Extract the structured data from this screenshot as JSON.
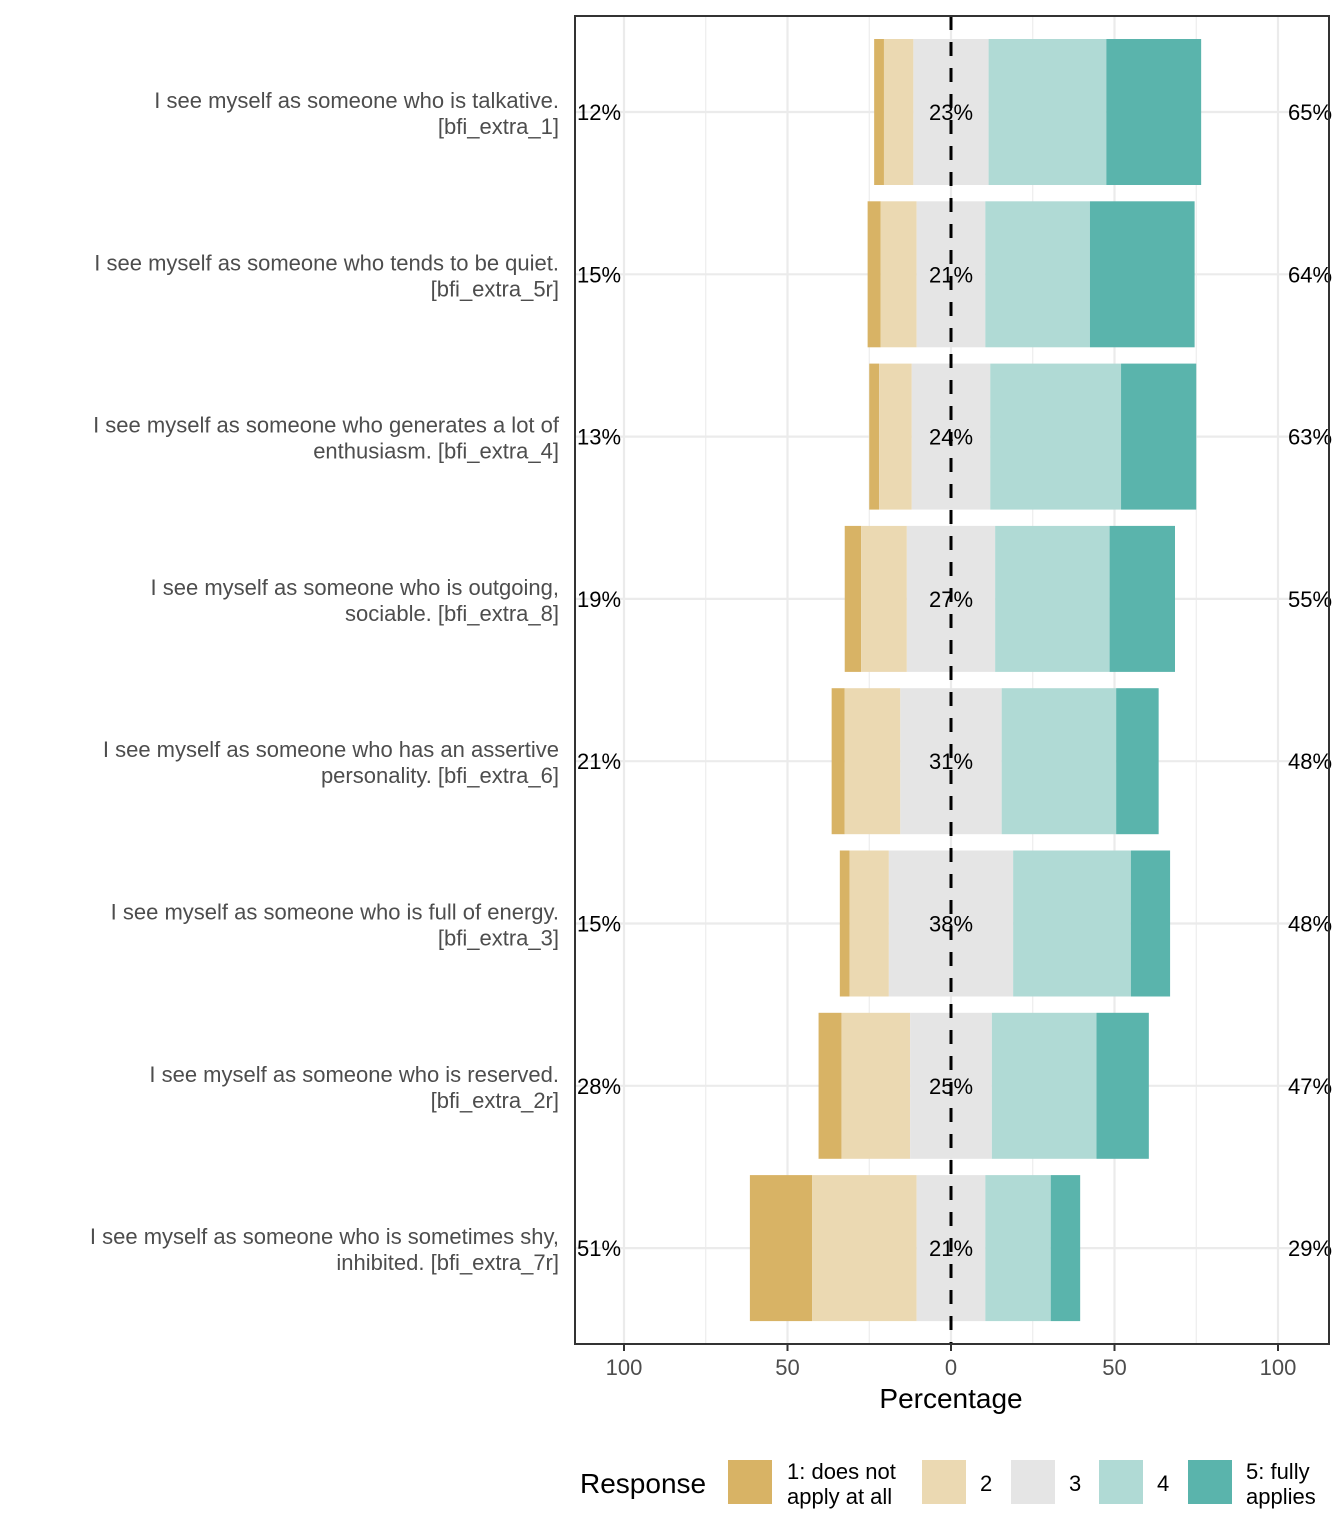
{
  "chart_data": {
    "type": "bar",
    "orientation": "horizontal-diverging-stacked",
    "xlabel": "Percentage",
    "x_ticks": [
      -100,
      -50,
      0,
      50,
      100
    ],
    "x_tick_labels": [
      "100",
      "50",
      "0",
      "50",
      "100"
    ],
    "xlim": [
      -100,
      100
    ],
    "grid": true,
    "legend_position": "bottom",
    "legend_title": "Response",
    "legend": [
      {
        "label": "1: does not\napply at all",
        "color": "#D8B365"
      },
      {
        "label": "2",
        "color": "#EBD9B2"
      },
      {
        "label": "3",
        "color": "#E5E5E5"
      },
      {
        "label": "4",
        "color": "#B0DAD5"
      },
      {
        "label": "5: fully\napplies",
        "color": "#5AB4AC"
      }
    ],
    "items": [
      {
        "label": "I see myself as someone who is talkative.\n[bfi_extra_1]",
        "values": [
          3,
          9,
          23,
          36,
          29
        ],
        "left_pct": "12%",
        "center_pct": "23%",
        "right_pct": "65%"
      },
      {
        "label": "I see myself as someone who tends to be quiet.\n[bfi_extra_5r]",
        "values": [
          4,
          11,
          21,
          32,
          32
        ],
        "left_pct": "15%",
        "center_pct": "21%",
        "right_pct": "64%"
      },
      {
        "label": "I see myself as someone who generates a lot of\nenthusiasm. [bfi_extra_4]",
        "values": [
          3,
          10,
          24,
          40,
          23
        ],
        "left_pct": "13%",
        "center_pct": "24%",
        "right_pct": "63%"
      },
      {
        "label": "I see myself as someone who is outgoing,\nsociable. [bfi_extra_8]",
        "values": [
          5,
          14,
          27,
          35,
          20
        ],
        "left_pct": "19%",
        "center_pct": "27%",
        "right_pct": "55%"
      },
      {
        "label": "I see myself as someone who has an assertive\npersonality. [bfi_extra_6]",
        "values": [
          4,
          17,
          31,
          35,
          13
        ],
        "left_pct": "21%",
        "center_pct": "31%",
        "right_pct": "48%"
      },
      {
        "label": "I see myself as someone who is full of energy.\n[bfi_extra_3]",
        "values": [
          3,
          12,
          38,
          36,
          12
        ],
        "left_pct": "15%",
        "center_pct": "38%",
        "right_pct": "48%"
      },
      {
        "label": "I see myself as someone who is reserved.\n[bfi_extra_2r]",
        "values": [
          7,
          21,
          25,
          32,
          16
        ],
        "left_pct": "28%",
        "center_pct": "25%",
        "right_pct": "47%"
      },
      {
        "label": "I see myself as someone who is sometimes shy,\ninhibited. [bfi_extra_7r]",
        "values": [
          19,
          32,
          21,
          20,
          9
        ],
        "left_pct": "51%",
        "center_pct": "21%",
        "right_pct": "29%"
      }
    ]
  }
}
